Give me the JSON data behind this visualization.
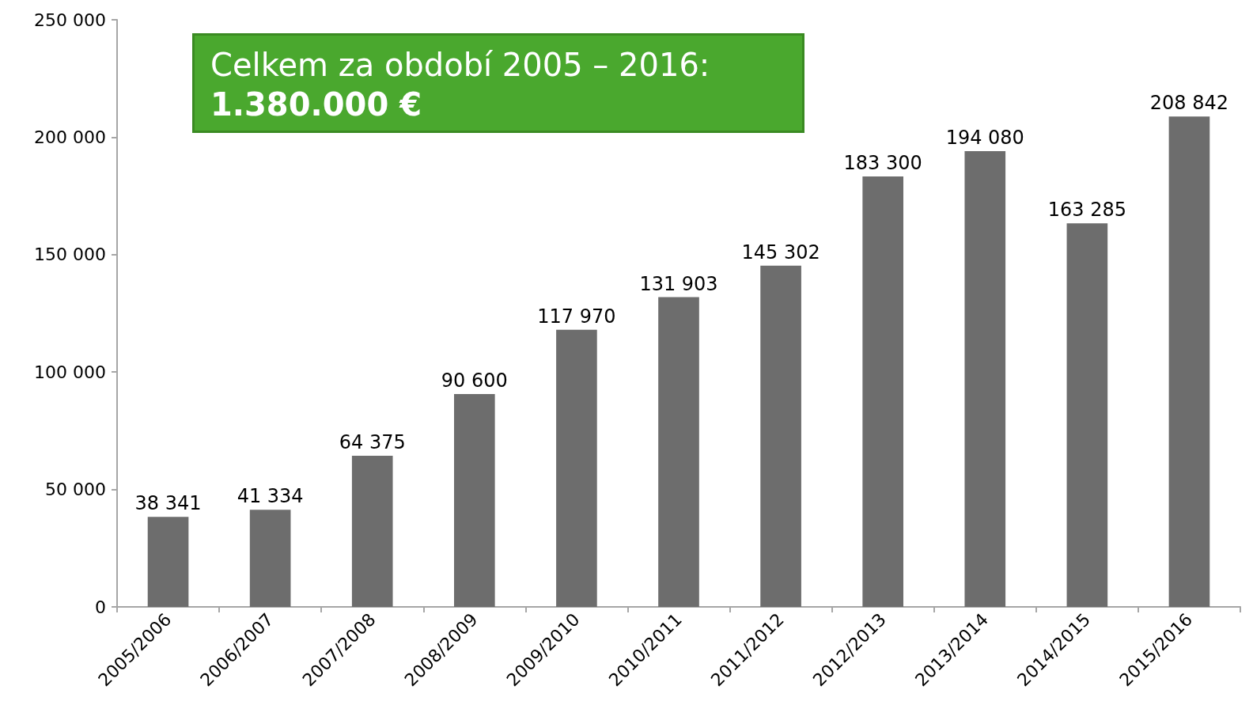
{
  "chart_data": {
    "type": "bar",
    "categories": [
      "2005/2006",
      "2006/2007",
      "2007/2008",
      "2008/2009",
      "2009/2010",
      "2010/2011",
      "2011/2012",
      "2012/2013",
      "2013/2014",
      "2014/2015",
      "2015/2016"
    ],
    "values": [
      38341,
      41334,
      64375,
      90600,
      117970,
      131903,
      145302,
      183300,
      194080,
      163285,
      208842
    ],
    "value_labels": [
      "38 341",
      "41 334",
      "64 375",
      "90 600",
      "117 970",
      "131 903",
      "145 302",
      "183 300",
      "194 080",
      "163 285",
      "208 842"
    ],
    "color": "#6d6d6d",
    "ylim": [
      0,
      250000
    ],
    "yticks": [
      0,
      {
        "value": 50000,
        "label": "50 000"
      },
      {
        "value": 100000,
        "label": "100 000"
      },
      {
        "value": 150000,
        "label": "150 000"
      },
      {
        "value": 200000,
        "label": "200 000"
      },
      {
        "value": 250000,
        "label": "250 000"
      }
    ],
    "grid": false,
    "annotations": [
      "Celkem za období 2005 – 2016:",
      "1.380.000 €"
    ]
  }
}
